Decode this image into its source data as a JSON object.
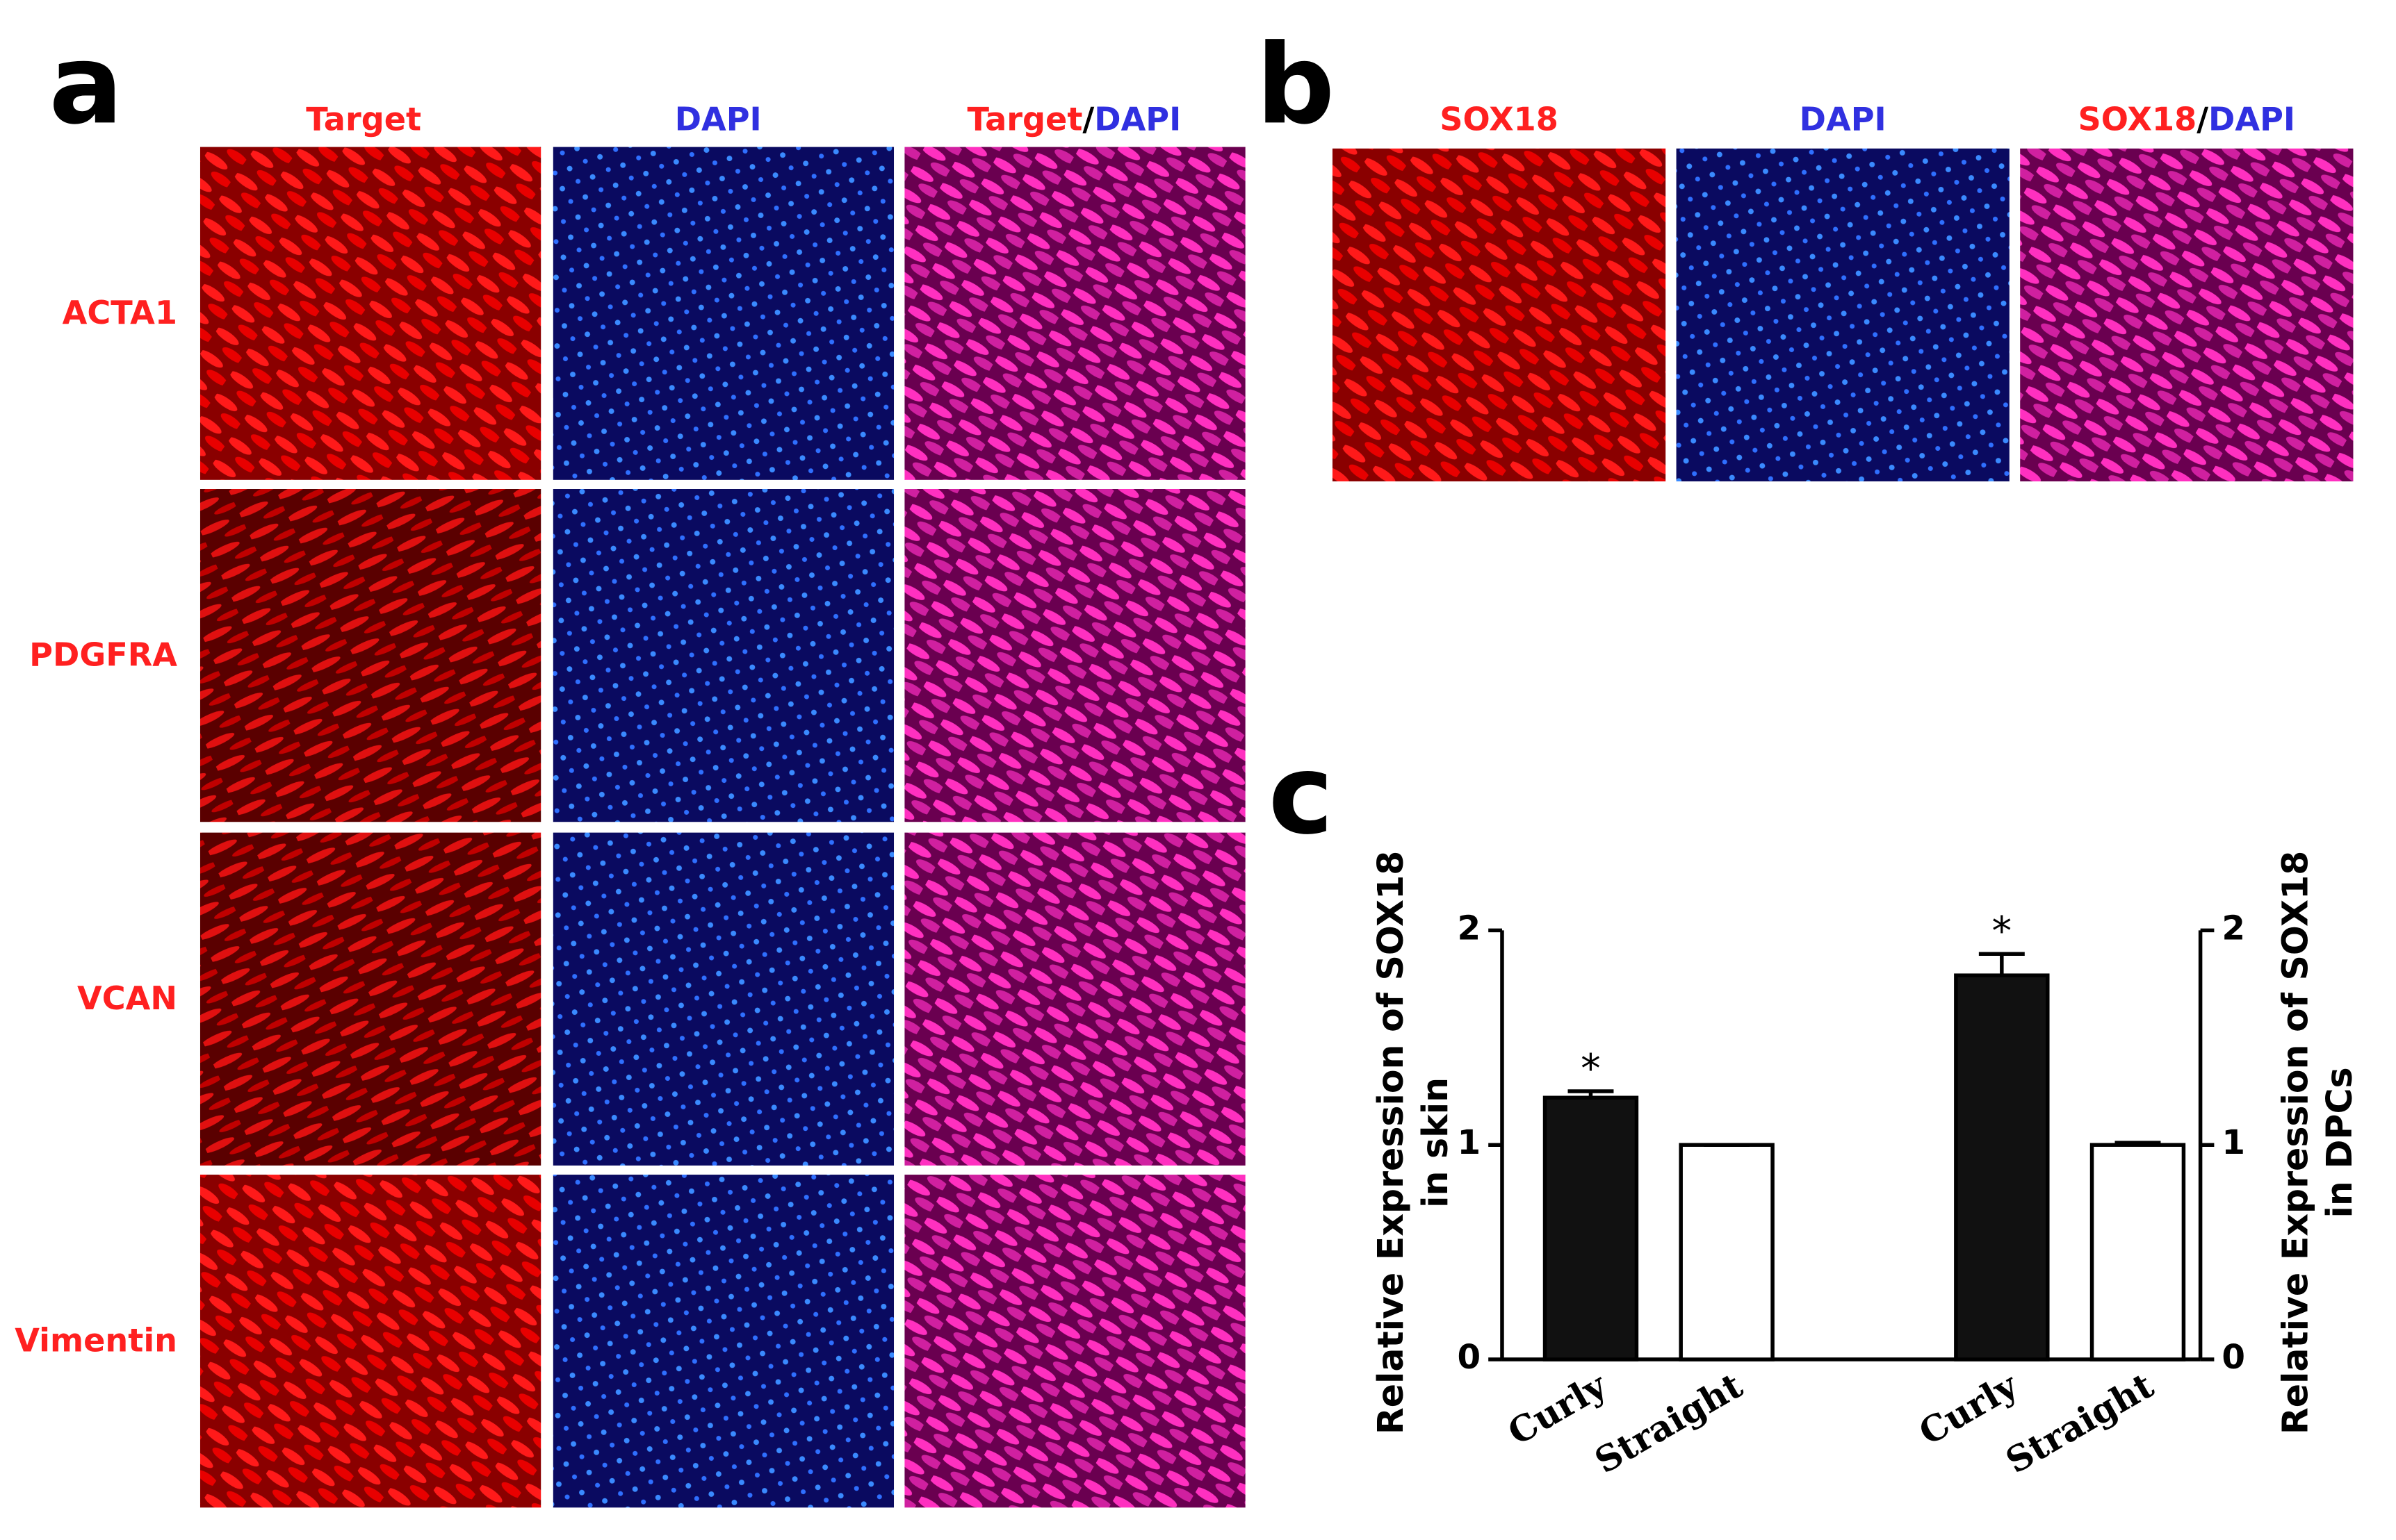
{
  "panel_a": {
    "label": "a",
    "column_headers": [
      "Target",
      "DAPI"
    ],
    "merged_header": [
      "Target",
      "/",
      "DAPI"
    ],
    "rows": [
      "ACTA1",
      "PDGFRA",
      "VCAN",
      "Vimentin"
    ]
  },
  "panel_b": {
    "label": "b",
    "column_headers": [
      "SOX18",
      "DAPI"
    ],
    "merged_header": [
      "SOX18",
      "/",
      "DAPI"
    ]
  },
  "chart_data": {
    "type": "bar",
    "label": "c",
    "ylabel": [
      "Relative Expression of SOX18",
      "in skin"
    ],
    "y2label": [
      "Relative Expression of SOX18",
      "in DPCs"
    ],
    "ylim": [
      0,
      2
    ],
    "yticks": [
      0,
      1,
      2
    ],
    "y2lim": [
      0,
      2
    ],
    "y2ticks": [
      0,
      1,
      2
    ],
    "groups": [
      {
        "axis": "y",
        "categories": [
          "Curly",
          "Straight"
        ],
        "values": [
          1.22,
          1.0
        ],
        "errors": [
          0.03,
          0
        ],
        "colors": [
          "#111111",
          "#ffffff"
        ],
        "annotations": [
          "*",
          null
        ]
      },
      {
        "axis": "y2",
        "categories": [
          "Curly",
          "Straight"
        ],
        "values": [
          1.79,
          1.0
        ],
        "errors": [
          0.1,
          0.01
        ],
        "colors": [
          "#111111",
          "#ffffff"
        ],
        "annotations": [
          "*",
          null
        ]
      }
    ]
  }
}
